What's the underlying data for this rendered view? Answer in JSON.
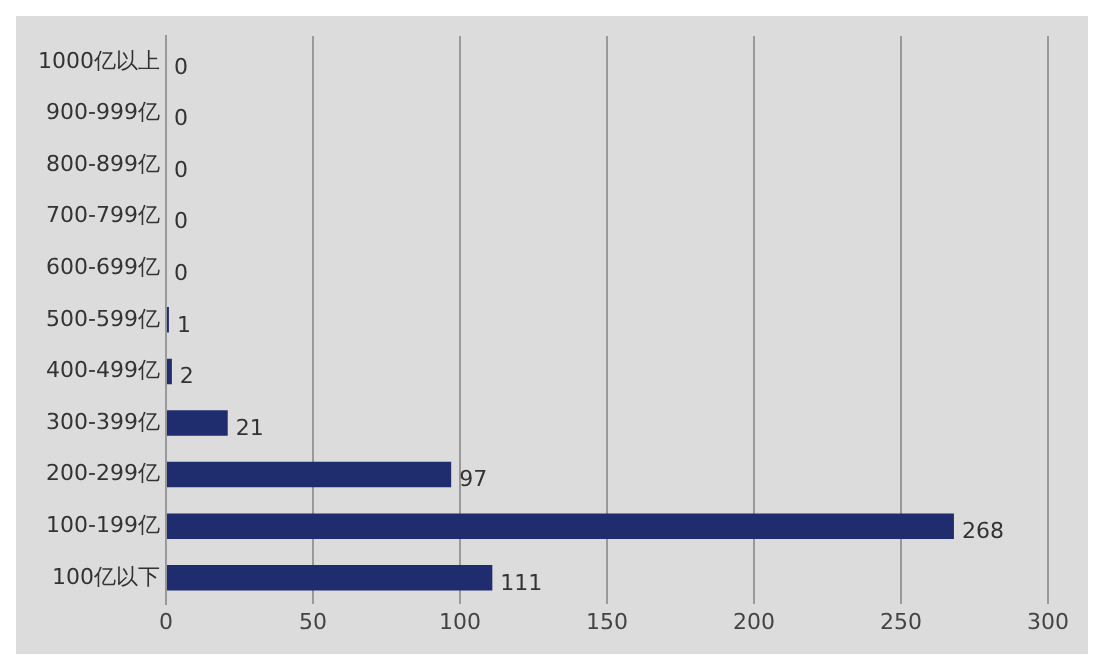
{
  "chart_data": {
    "type": "bar",
    "orientation": "horizontal",
    "categories": [
      "1000亿以上",
      "900-999亿",
      "800-899亿",
      "700-799亿",
      "600-699亿",
      "500-599亿",
      "400-499亿",
      "300-399亿",
      "200-299亿",
      "100-199亿",
      "100亿以下"
    ],
    "values": [
      0,
      0,
      0,
      0,
      0,
      1,
      2,
      21,
      97,
      268,
      111
    ],
    "color": "#1f2d6e",
    "xlim": [
      0,
      300
    ],
    "xticks": [
      0,
      50,
      100,
      150,
      200,
      250,
      300
    ],
    "grid": "x",
    "data_labels": true,
    "legend": false
  }
}
